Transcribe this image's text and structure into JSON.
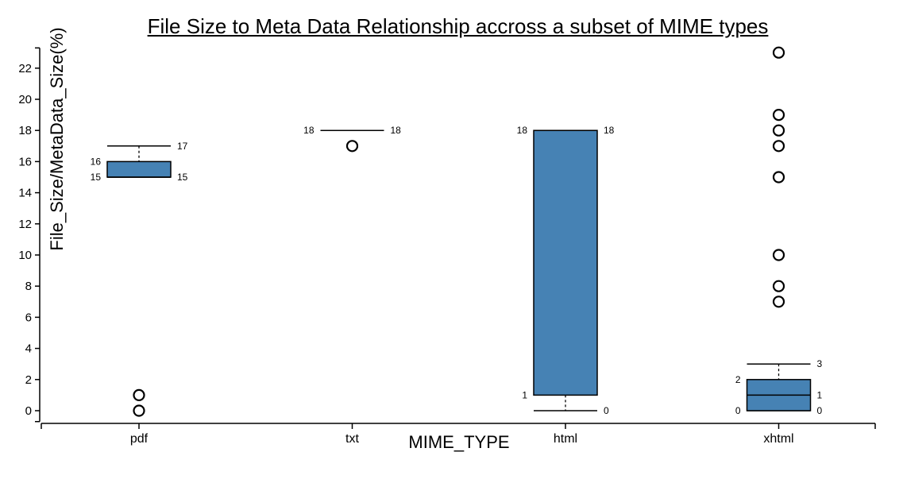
{
  "chart_data": {
    "type": "boxplot",
    "title": "File Size to Meta Data Relationship accross a subset of MIME types",
    "xlabel": "MIME_TYPE",
    "ylabel": "File_Size/MetaData_Size(%)",
    "ylim": [
      -0.7,
      23.3
    ],
    "yticks": [
      0,
      2,
      4,
      6,
      8,
      10,
      12,
      14,
      16,
      18,
      20,
      22
    ],
    "categories": [
      "pdf",
      "txt",
      "html",
      "xhtml"
    ],
    "boxes": [
      {
        "category": "pdf",
        "whisker_low": 15,
        "q1": 15,
        "median": 15,
        "q3": 16,
        "whisker_high": 17,
        "outliers": [
          1,
          0
        ]
      },
      {
        "category": "txt",
        "whisker_low": 18,
        "q1": 18,
        "median": 18,
        "q3": 18,
        "whisker_high": 18,
        "outliers": [
          17
        ]
      },
      {
        "category": "html",
        "whisker_low": 0,
        "q1": 1,
        "median": 18,
        "q3": 18,
        "whisker_high": 18,
        "outliers": []
      },
      {
        "category": "xhtml",
        "whisker_low": 0,
        "q1": 0,
        "median": 1,
        "q3": 2,
        "whisker_high": 3,
        "outliers": [
          23,
          19,
          18,
          17,
          15,
          10,
          8,
          7
        ]
      }
    ],
    "data_labels": [
      {
        "category": "pdf",
        "side": "right",
        "value": 17,
        "text": "17"
      },
      {
        "category": "pdf",
        "side": "left",
        "value": 16,
        "text": "16"
      },
      {
        "category": "pdf",
        "side": "left",
        "value": 15,
        "text": "15"
      },
      {
        "category": "pdf",
        "side": "right",
        "value": 15,
        "text": "15"
      },
      {
        "category": "txt",
        "side": "left",
        "value": 18,
        "text": "18"
      },
      {
        "category": "txt",
        "side": "right",
        "value": 18,
        "text": "18"
      },
      {
        "category": "html",
        "side": "left",
        "value": 18,
        "text": "18"
      },
      {
        "category": "html",
        "side": "right",
        "value": 18,
        "text": "18"
      },
      {
        "category": "html",
        "side": "left",
        "value": 1,
        "text": "1"
      },
      {
        "category": "html",
        "side": "right",
        "value": 0,
        "text": "0"
      },
      {
        "category": "xhtml",
        "side": "right",
        "value": 3,
        "text": "3"
      },
      {
        "category": "xhtml",
        "side": "left",
        "value": 2,
        "text": "2"
      },
      {
        "category": "xhtml",
        "side": "right",
        "value": 1,
        "text": "1"
      },
      {
        "category": "xhtml",
        "side": "left",
        "value": 0,
        "text": "0"
      },
      {
        "category": "xhtml",
        "side": "right",
        "value": 0,
        "text": "0"
      }
    ],
    "grid": false,
    "colors": {
      "box_fill": "#4682b4",
      "stroke": "#000000"
    }
  }
}
